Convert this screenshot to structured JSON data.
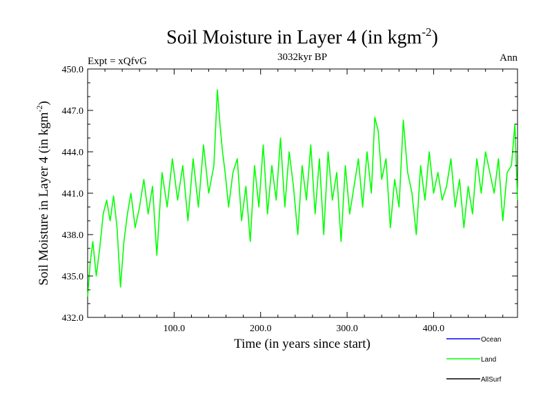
{
  "chart_data": {
    "type": "line",
    "title": "Soil Moisture in Layer 4 (in kgm",
    "title_sup": "-2",
    "title_close": ")",
    "subtitle": "3032kyr BP",
    "left_label": "Expt = xQfvG",
    "right_label": "Ann",
    "xlabel": "Time (in years since start)",
    "ylabel": "Soil Moisture in Layer 4 (in kgm",
    "ylabel_sup": "-2",
    "ylabel_close": ")",
    "xlim": [
      0,
      497
    ],
    "ylim": [
      432.0,
      450.0
    ],
    "xticks": [
      100,
      200,
      300,
      400
    ],
    "xtick_labels": [
      "100.0",
      "200.0",
      "300.0",
      "400.0"
    ],
    "yticks": [
      432,
      435,
      438,
      441,
      444,
      447,
      450
    ],
    "ytick_labels": [
      "432.0",
      "435.0",
      "438.0",
      "441.0",
      "444.0",
      "447.0",
      "450.0"
    ],
    "legend": [
      {
        "name": "Ocean",
        "color": "#0000ff"
      },
      {
        "name": "Land",
        "color": "#00ff00"
      },
      {
        "name": "AllSurf",
        "color": "#000000"
      }
    ],
    "series": [
      {
        "name": "Land",
        "color": "#00ff00",
        "x": [
          0,
          3,
          6,
          10,
          14,
          18,
          22,
          26,
          30,
          34,
          38,
          42,
          46,
          50,
          55,
          60,
          65,
          70,
          75,
          80,
          86,
          92,
          98,
          104,
          110,
          116,
          122,
          128,
          134,
          140,
          146,
          150,
          153,
          156,
          159,
          163,
          168,
          173,
          178,
          183,
          188,
          193,
          198,
          203,
          208,
          213,
          218,
          223,
          228,
          233,
          238,
          243,
          248,
          253,
          258,
          263,
          268,
          273,
          278,
          283,
          288,
          293,
          298,
          303,
          308,
          313,
          318,
          323,
          328,
          332,
          336,
          340,
          345,
          350,
          355,
          360,
          365,
          370,
          375,
          380,
          385,
          390,
          395,
          400,
          405,
          410,
          415,
          420,
          425,
          430,
          435,
          440,
          445,
          450,
          455,
          460,
          465,
          470,
          475,
          480,
          485,
          490,
          494,
          497
        ],
        "values": [
          433.5,
          436.0,
          437.5,
          435.0,
          437.0,
          439.5,
          440.5,
          439.0,
          440.8,
          438.5,
          434.2,
          437.5,
          439.5,
          441.0,
          438.5,
          440.0,
          442.0,
          439.5,
          441.5,
          436.5,
          442.5,
          440.0,
          443.5,
          440.5,
          443.0,
          439.0,
          443.5,
          440.0,
          444.5,
          441.0,
          443.0,
          448.5,
          446.0,
          444.0,
          442.5,
          440.0,
          442.5,
          443.5,
          439.0,
          441.5,
          437.5,
          443.0,
          440.0,
          444.5,
          439.5,
          443.0,
          440.5,
          445.0,
          440.0,
          444.0,
          441.5,
          438.0,
          443.0,
          440.5,
          444.5,
          439.5,
          443.5,
          438.0,
          444.0,
          440.5,
          442.5,
          437.5,
          443.0,
          439.5,
          441.5,
          443.5,
          440.0,
          444.0,
          441.0,
          446.5,
          445.5,
          442.0,
          443.5,
          438.5,
          442.0,
          440.0,
          446.3,
          442.5,
          441.0,
          438.0,
          443.0,
          440.5,
          444.0,
          441.0,
          442.5,
          440.5,
          441.5,
          443.5,
          440.0,
          442.0,
          438.5,
          441.5,
          439.5,
          443.5,
          441.0,
          444.0,
          442.5,
          441.0,
          443.5,
          439.0,
          442.5,
          443.0,
          446.0,
          440.5
        ]
      }
    ]
  }
}
